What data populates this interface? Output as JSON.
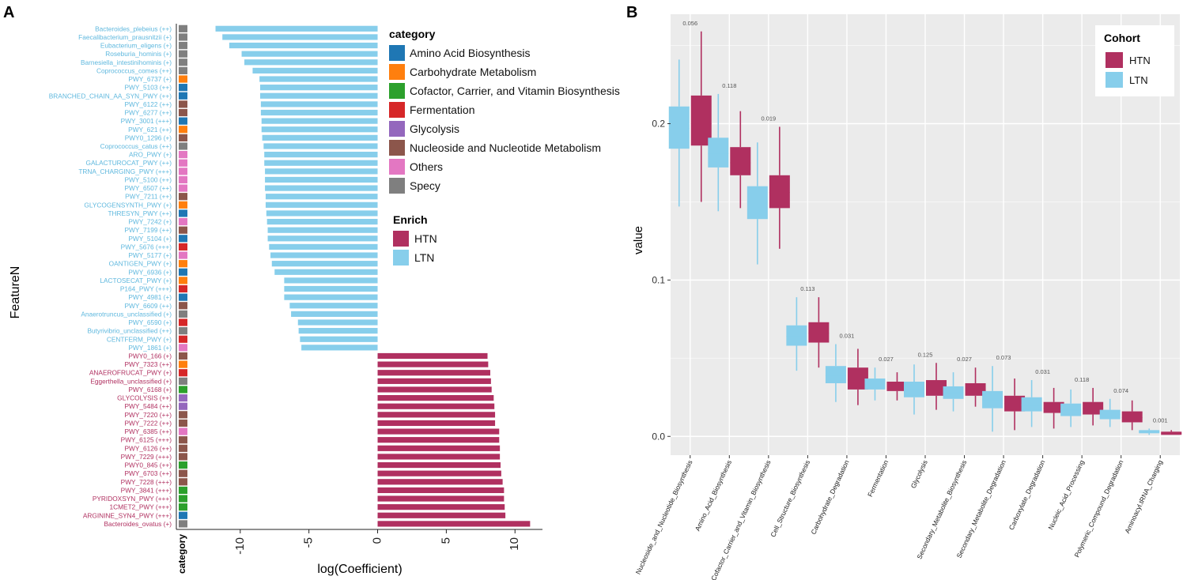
{
  "panel_labels": {
    "a": "A",
    "b": "B"
  },
  "chart_data": [
    {
      "type": "bar",
      "orientation": "horizontal",
      "xlabel": "log(Coefficient)",
      "ylabel": "FeatureN",
      "category_axis_label": "category",
      "xlim": [
        -13.5,
        12
      ],
      "xticks": [
        -10,
        -5,
        0,
        5,
        10
      ],
      "xtick_labels": [
        "-10",
        "-5",
        "0",
        "5",
        "10"
      ],
      "features": [
        {
          "label": "Bacteroides_plebeius  (++)",
          "value": -11.8,
          "category": "Specy",
          "enrich": "LTN"
        },
        {
          "label": "Faecalibacterium_prausnitzii  (+)",
          "value": -11.3,
          "category": "Specy",
          "enrich": "LTN"
        },
        {
          "label": "Eubacterium_eligens  (+)",
          "value": -10.8,
          "category": "Specy",
          "enrich": "LTN"
        },
        {
          "label": "Roseburia_hominis  (+)",
          "value": -9.9,
          "category": "Specy",
          "enrich": "LTN"
        },
        {
          "label": "Barnesiella_intestinihominis  (+)",
          "value": -9.7,
          "category": "Specy",
          "enrich": "LTN"
        },
        {
          "label": "Coprococcus_comes  (++)",
          "value": -9.1,
          "category": "Specy",
          "enrich": "LTN"
        },
        {
          "label": "PWY_6737  (+)",
          "value": -8.6,
          "category": "Carbohydrate Metabolism",
          "enrich": "LTN"
        },
        {
          "label": "PWY_5103  (++)",
          "value": -8.55,
          "category": "Amino Acid Biosynthesis",
          "enrich": "LTN"
        },
        {
          "label": "BRANCHED_CHAIN_AA_SYN_PWY  (++)",
          "value": -8.55,
          "category": "Amino Acid Biosynthesis",
          "enrich": "LTN"
        },
        {
          "label": "PWY_6122  (++)",
          "value": -8.5,
          "category": "Nucleoside and Nucleotide Metabolism",
          "enrich": "LTN"
        },
        {
          "label": "PWY_6277  (++)",
          "value": -8.5,
          "category": "Nucleoside and Nucleotide Metabolism",
          "enrich": "LTN"
        },
        {
          "label": "PWY_3001  (+++)",
          "value": -8.45,
          "category": "Amino Acid Biosynthesis",
          "enrich": "LTN"
        },
        {
          "label": "PWY_621  (++)",
          "value": -8.45,
          "category": "Carbohydrate Metabolism",
          "enrich": "LTN"
        },
        {
          "label": "PWY0_1296  (+)",
          "value": -8.4,
          "category": "Nucleoside and Nucleotide Metabolism",
          "enrich": "LTN"
        },
        {
          "label": "Coprococcus_catus  (++)",
          "value": -8.3,
          "category": "Specy",
          "enrich": "LTN"
        },
        {
          "label": "ARO_PWY  (+)",
          "value": -8.25,
          "category": "Others",
          "enrich": "LTN"
        },
        {
          "label": "GALACTUROCAT_PWY  (++)",
          "value": -8.25,
          "category": "Others",
          "enrich": "LTN"
        },
        {
          "label": "TRNA_CHARGING_PWY  (+++)",
          "value": -8.2,
          "category": "Others",
          "enrich": "LTN"
        },
        {
          "label": "PWY_5100  (++)",
          "value": -8.2,
          "category": "Others",
          "enrich": "LTN"
        },
        {
          "label": "PWY_6507  (++)",
          "value": -8.2,
          "category": "Others",
          "enrich": "LTN"
        },
        {
          "label": "PWY_7211  (++)",
          "value": -8.15,
          "category": "Nucleoside and Nucleotide Metabolism",
          "enrich": "LTN"
        },
        {
          "label": "GLYCOGENSYNTH_PWY  (+)",
          "value": -8.15,
          "category": "Carbohydrate Metabolism",
          "enrich": "LTN"
        },
        {
          "label": "THRESYN_PWY  (++)",
          "value": -8.1,
          "category": "Amino Acid Biosynthesis",
          "enrich": "LTN"
        },
        {
          "label": "PWY_7242  (+)",
          "value": -8.05,
          "category": "Others",
          "enrich": "LTN"
        },
        {
          "label": "PWY_7199  (++)",
          "value": -8.0,
          "category": "Nucleoside and Nucleotide Metabolism",
          "enrich": "LTN"
        },
        {
          "label": "PWY_5104  (+)",
          "value": -8.0,
          "category": "Amino Acid Biosynthesis",
          "enrich": "LTN"
        },
        {
          "label": "PWY_5676  (+++)",
          "value": -7.9,
          "category": "Fermentation",
          "enrich": "LTN"
        },
        {
          "label": "PWY_5177  (+)",
          "value": -7.8,
          "category": "Others",
          "enrich": "LTN"
        },
        {
          "label": "OANTIGEN_PWY  (+)",
          "value": -7.7,
          "category": "Carbohydrate Metabolism",
          "enrich": "LTN"
        },
        {
          "label": "PWY_6936  (+)",
          "value": -7.5,
          "category": "Amino Acid Biosynthesis",
          "enrich": "LTN"
        },
        {
          "label": "LACTOSECAT_PWY  (+)",
          "value": -6.8,
          "category": "Carbohydrate Metabolism",
          "enrich": "LTN"
        },
        {
          "label": "P164_PWY  (+++)",
          "value": -6.8,
          "category": "Fermentation",
          "enrich": "LTN"
        },
        {
          "label": "PWY_4981  (+)",
          "value": -6.8,
          "category": "Amino Acid Biosynthesis",
          "enrich": "LTN"
        },
        {
          "label": "PWY_6609  (++)",
          "value": -6.4,
          "category": "Nucleoside and Nucleotide Metabolism",
          "enrich": "LTN"
        },
        {
          "label": "Anaerotruncus_unclassified  (+)",
          "value": -6.3,
          "category": "Specy",
          "enrich": "LTN"
        },
        {
          "label": "PWY_6590  (+)",
          "value": -5.8,
          "category": "Fermentation",
          "enrich": "LTN"
        },
        {
          "label": "Butyrivibrio_unclassified  (++)",
          "value": -5.75,
          "category": "Specy",
          "enrich": "LTN"
        },
        {
          "label": "CENTFERM_PWY  (+)",
          "value": -5.65,
          "category": "Fermentation",
          "enrich": "LTN"
        },
        {
          "label": "PWY_1861  (+)",
          "value": -5.55,
          "category": "Others",
          "enrich": "LTN"
        },
        {
          "label": "PWY0_166  (+)",
          "value": 8.0,
          "category": "Nucleoside and Nucleotide Metabolism",
          "enrich": "HTN"
        },
        {
          "label": "PWY_7323  (++)",
          "value": 8.05,
          "category": "Carbohydrate Metabolism",
          "enrich": "HTN"
        },
        {
          "label": "ANAEROFRUCAT_PWY  (+)",
          "value": 8.2,
          "category": "Fermentation",
          "enrich": "HTN"
        },
        {
          "label": "Eggerthella_unclassified  (+)",
          "value": 8.25,
          "category": "Specy",
          "enrich": "HTN"
        },
        {
          "label": "PWY_6168  (+)",
          "value": 8.3,
          "category": "Cofactor, Carrier, and Vitamin Biosynthesis",
          "enrich": "HTN"
        },
        {
          "label": "GLYCOLYSIS  (++)",
          "value": 8.45,
          "category": "Glycolysis",
          "enrich": "HTN"
        },
        {
          "label": "PWY_5484  (++)",
          "value": 8.5,
          "category": "Glycolysis",
          "enrich": "HTN"
        },
        {
          "label": "PWY_7220  (++)",
          "value": 8.55,
          "category": "Nucleoside and Nucleotide Metabolism",
          "enrich": "HTN"
        },
        {
          "label": "PWY_7222  (++)",
          "value": 8.55,
          "category": "Nucleoside and Nucleotide Metabolism",
          "enrich": "HTN"
        },
        {
          "label": "PWY_6385  (++)",
          "value": 8.85,
          "category": "Others",
          "enrich": "HTN"
        },
        {
          "label": "PWY_6125  (+++)",
          "value": 8.85,
          "category": "Nucleoside and Nucleotide Metabolism",
          "enrich": "HTN"
        },
        {
          "label": "PWY_6126  (++)",
          "value": 8.9,
          "category": "Nucleoside and Nucleotide Metabolism",
          "enrich": "HTN"
        },
        {
          "label": "PWY_7229  (+++)",
          "value": 8.9,
          "category": "Nucleoside and Nucleotide Metabolism",
          "enrich": "HTN"
        },
        {
          "label": "PWY0_845  (++)",
          "value": 8.95,
          "category": "Cofactor, Carrier, and Vitamin Biosynthesis",
          "enrich": "HTN"
        },
        {
          "label": "PWY_6703  (++)",
          "value": 9.0,
          "category": "Nucleoside and Nucleotide Metabolism",
          "enrich": "HTN"
        },
        {
          "label": "PWY_7228  (+++)",
          "value": 9.1,
          "category": "Nucleoside and Nucleotide Metabolism",
          "enrich": "HTN"
        },
        {
          "label": "PWY_3841  (+++)",
          "value": 9.2,
          "category": "Cofactor, Carrier, and Vitamin Biosynthesis",
          "enrich": "HTN"
        },
        {
          "label": "PYRIDOXSYN_PWY  (+++)",
          "value": 9.2,
          "category": "Cofactor, Carrier, and Vitamin Biosynthesis",
          "enrich": "HTN"
        },
        {
          "label": "1CMET2_PWY  (+++)",
          "value": 9.25,
          "category": "Cofactor, Carrier, and Vitamin Biosynthesis",
          "enrich": "HTN"
        },
        {
          "label": "ARGININE_SYN4_PWY  (+++)",
          "value": 9.3,
          "category": "Amino Acid Biosynthesis",
          "enrich": "HTN"
        },
        {
          "label": "Bacteroides_ovatus  (+)",
          "value": 11.1,
          "category": "Specy",
          "enrich": "HTN"
        }
      ],
      "legend_category": {
        "title": "category",
        "items": [
          {
            "label": "Amino Acid Biosynthesis",
            "color": "#1f77b4"
          },
          {
            "label": "Carbohydrate Metabolism",
            "color": "#ff7f0e"
          },
          {
            "label": "Cofactor, Carrier, and Vitamin Biosynthesis",
            "color": "#2ca02c"
          },
          {
            "label": "Fermentation",
            "color": "#d62728"
          },
          {
            "label": "Glycolysis",
            "color": "#9467bd"
          },
          {
            "label": "Nucleoside and Nucleotide Metabolism",
            "color": "#8c564b"
          },
          {
            "label": "Others",
            "color": "#e377c2"
          },
          {
            "label": "Specy",
            "color": "#7f7f7f"
          }
        ]
      },
      "legend_enrich": {
        "title": "Enrich",
        "items": [
          {
            "label": "HTN",
            "color": "#b03060"
          },
          {
            "label": "LTN",
            "color": "#87ceeb"
          }
        ]
      }
    },
    {
      "type": "boxplot",
      "ylabel": "value",
      "xlabel": "",
      "ylim": [
        -0.012,
        0.27
      ],
      "yticks": [
        0.0,
        0.1,
        0.2
      ],
      "ytick_labels": [
        "0.0",
        "0.1",
        "0.2"
      ],
      "grid": true,
      "legend": {
        "title": "Cohort",
        "position": "top-right",
        "items": [
          {
            "label": "HTN",
            "color": "#b03060"
          },
          {
            "label": "LTN",
            "color": "#87ceeb"
          }
        ]
      },
      "groups": [
        {
          "label": "Nucleoside_and_Nucleotide_Biosynthesis",
          "p": "0.056",
          "LTN": {
            "lo": 0.147,
            "q1": 0.184,
            "med": 0.197,
            "q3": 0.211,
            "hi": 0.241
          },
          "HTN": {
            "lo": 0.15,
            "q1": 0.186,
            "med": 0.2,
            "q3": 0.218,
            "hi": 0.259
          }
        },
        {
          "label": "Amino_Acid_Biosynthesis",
          "p": "0.118",
          "LTN": {
            "lo": 0.144,
            "q1": 0.172,
            "med": 0.181,
            "q3": 0.191,
            "hi": 0.219
          },
          "HTN": {
            "lo": 0.146,
            "q1": 0.167,
            "med": 0.175,
            "q3": 0.185,
            "hi": 0.208
          }
        },
        {
          "label": "Cofactor_Carrier_and_Vitamin_Biosynthesis",
          "p": "0.019",
          "LTN": {
            "lo": 0.11,
            "q1": 0.139,
            "med": 0.15,
            "q3": 0.16,
            "hi": 0.188
          },
          "HTN": {
            "lo": 0.12,
            "q1": 0.146,
            "med": 0.156,
            "q3": 0.167,
            "hi": 0.198
          }
        },
        {
          "label": "Cell_Structure_Biosynthesis",
          "p": "0.113",
          "LTN": {
            "lo": 0.042,
            "q1": 0.058,
            "med": 0.064,
            "q3": 0.071,
            "hi": 0.089
          },
          "HTN": {
            "lo": 0.044,
            "q1": 0.06,
            "med": 0.066,
            "q3": 0.073,
            "hi": 0.089
          }
        },
        {
          "label": "Carbohydrate_Degradation",
          "p": "0.031",
          "LTN": {
            "lo": 0.022,
            "q1": 0.034,
            "med": 0.039,
            "q3": 0.045,
            "hi": 0.059
          },
          "HTN": {
            "lo": 0.02,
            "q1": 0.03,
            "med": 0.036,
            "q3": 0.044,
            "hi": 0.056
          }
        },
        {
          "label": "Fermentation",
          "p": "0.027",
          "LTN": {
            "lo": 0.023,
            "q1": 0.03,
            "med": 0.034,
            "q3": 0.037,
            "hi": 0.044
          },
          "HTN": {
            "lo": 0.023,
            "q1": 0.029,
            "med": 0.032,
            "q3": 0.035,
            "hi": 0.041
          }
        },
        {
          "label": "Glycolysis",
          "p": "0.125",
          "LTN": {
            "lo": 0.014,
            "q1": 0.025,
            "med": 0.03,
            "q3": 0.035,
            "hi": 0.046
          },
          "HTN": {
            "lo": 0.017,
            "q1": 0.026,
            "med": 0.032,
            "q3": 0.036,
            "hi": 0.047
          }
        },
        {
          "label": "Secondary_Metabolite_Biosynthesis",
          "p": "0.027",
          "LTN": {
            "lo": 0.016,
            "q1": 0.024,
            "med": 0.028,
            "q3": 0.032,
            "hi": 0.041
          },
          "HTN": {
            "lo": 0.019,
            "q1": 0.026,
            "med": 0.03,
            "q3": 0.034,
            "hi": 0.044
          }
        },
        {
          "label": "Secondary_Metabolite_Degradation",
          "p": "0.073",
          "LTN": {
            "lo": 0.003,
            "q1": 0.018,
            "med": 0.023,
            "q3": 0.029,
            "hi": 0.045
          },
          "HTN": {
            "lo": 0.004,
            "q1": 0.016,
            "med": 0.021,
            "q3": 0.026,
            "hi": 0.037
          }
        },
        {
          "label": "Carboxylate_Degradation",
          "p": "0.031",
          "LTN": {
            "lo": 0.006,
            "q1": 0.016,
            "med": 0.02,
            "q3": 0.025,
            "hi": 0.036
          },
          "HTN": {
            "lo": 0.005,
            "q1": 0.015,
            "med": 0.018,
            "q3": 0.022,
            "hi": 0.031
          }
        },
        {
          "label": "Nucleic_Acid_Processing",
          "p": "0.118",
          "LTN": {
            "lo": 0.006,
            "q1": 0.013,
            "med": 0.017,
            "q3": 0.021,
            "hi": 0.03
          },
          "HTN": {
            "lo": 0.007,
            "q1": 0.014,
            "med": 0.018,
            "q3": 0.022,
            "hi": 0.031
          }
        },
        {
          "label": "Polymeric_Compound_Degradation",
          "p": "0.074",
          "LTN": {
            "lo": 0.006,
            "q1": 0.011,
            "med": 0.014,
            "q3": 0.017,
            "hi": 0.024
          },
          "HTN": {
            "lo": 0.004,
            "q1": 0.009,
            "med": 0.012,
            "q3": 0.016,
            "hi": 0.023
          }
        },
        {
          "label": "Aminoacyl.tRNA_Charging",
          "p": "0.001",
          "LTN": {
            "lo": 0.001,
            "q1": 0.002,
            "med": 0.003,
            "q3": 0.004,
            "hi": 0.005
          },
          "HTN": {
            "lo": 0.001,
            "q1": 0.001,
            "med": 0.002,
            "q3": 0.003,
            "hi": 0.004
          }
        }
      ]
    }
  ]
}
